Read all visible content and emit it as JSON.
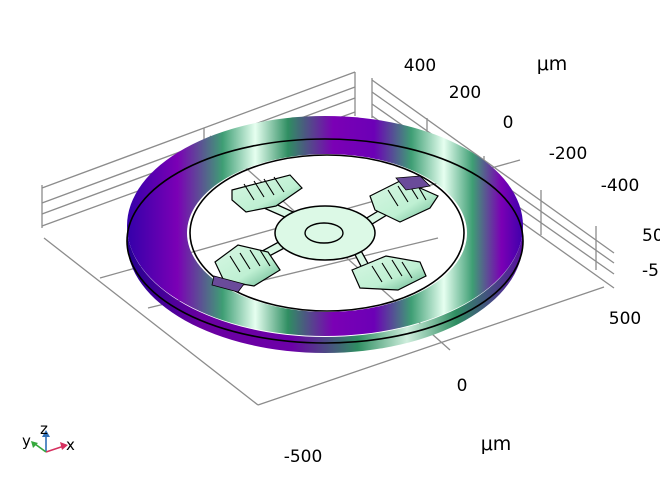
{
  "viewport": {
    "x_axis": {
      "unit": "μm",
      "ticks": [
        "-500",
        "0",
        "500"
      ]
    },
    "y_axis": {
      "unit": "μm",
      "ticks": [
        "400",
        "200",
        "0",
        "-200",
        "-400"
      ]
    },
    "z_axis": {
      "ticks": [
        "50",
        "-5"
      ]
    },
    "triad": {
      "x_label": "x",
      "y_label": "y",
      "z_label": "z"
    }
  },
  "colors": {
    "ring_dark": "#2a00a8",
    "ring_purple": "#7b00b5",
    "ring_green": "#3e9e74",
    "ring_light": "#e6fff0",
    "triad_x": "#d6305f",
    "triad_y": "#35a83c",
    "triad_z": "#2f6fb8"
  },
  "icons": [
    "axis-triad-icon"
  ]
}
